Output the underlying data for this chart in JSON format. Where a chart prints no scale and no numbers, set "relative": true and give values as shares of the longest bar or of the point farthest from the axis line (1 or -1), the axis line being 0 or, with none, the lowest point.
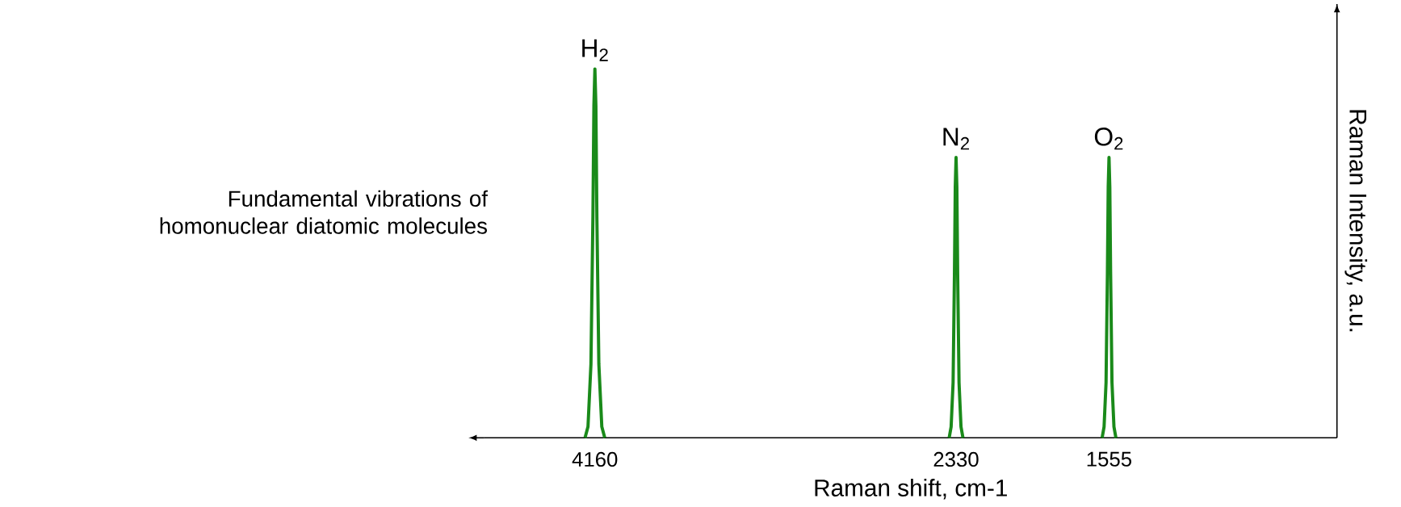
{
  "chart_data": {
    "type": "line",
    "relative": true,
    "xlabel": "Raman shift, cm-1",
    "ylabel": "Raman Intensity, a.u.",
    "xlim": [
      4720,
      400
    ],
    "xticks": [
      4160,
      2330,
      1555
    ],
    "marker": "none",
    "series": [
      {
        "color": "#1a8a1a",
        "x": [
          4210,
          4195,
          4180,
          4170,
          4165,
          4160,
          4155,
          4150,
          4140,
          4125,
          4110
        ],
        "values": [
          0,
          0.03,
          0.2,
          0.6,
          0.9,
          1,
          0.9,
          0.6,
          0.2,
          0.03,
          0
        ]
      },
      {
        "color": "#1a8a1a",
        "x": [
          2365,
          2355,
          2345,
          2338,
          2334,
          2330,
          2326,
          2322,
          2315,
          2305,
          2295
        ],
        "values": [
          0,
          0.03,
          0.15,
          0.45,
          0.68,
          0.76,
          0.68,
          0.45,
          0.15,
          0.03,
          0
        ]
      },
      {
        "color": "#1a8a1a",
        "x": [
          1590,
          1580,
          1570,
          1563,
          1559,
          1555,
          1551,
          1547,
          1540,
          1530,
          1520
        ],
        "values": [
          0,
          0.03,
          0.15,
          0.45,
          0.68,
          0.76,
          0.68,
          0.45,
          0.15,
          0.03,
          0
        ]
      }
    ],
    "annotations": [
      {
        "text": "H$_{2}$",
        "x": 4160,
        "y": 1
      },
      {
        "text": "N$_{2}$",
        "x": 2330,
        "y": 0.76
      },
      {
        "text": "O$_{2}$",
        "x": 1555,
        "y": 0.76
      },
      "Fundamental vibrations of homonuclear diatomic molecules"
    ]
  }
}
